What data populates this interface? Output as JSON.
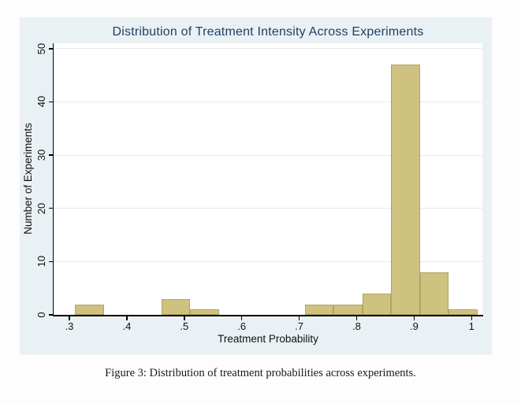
{
  "figure": {
    "caption": "Figure 3: Distribution of treatment probabilities across experiments."
  },
  "colors": {
    "chart_background": "#eaf1f4",
    "plot_background": "#ffffff",
    "title_color": "#1e3f66",
    "bar_fill": "#cfc180",
    "bar_border": "#b3a55c",
    "gridline": "#e3ebf0",
    "axis": "#000000"
  },
  "chart_data": {
    "type": "bar",
    "subtype": "histogram",
    "title": "Distribution of Treatment Intensity Across Experiments",
    "xlabel": "Treatment Probability",
    "ylabel": "Number of Experiments",
    "grid": "horizontal",
    "legend": "none",
    "bin_width": 0.05,
    "xlim": [
      0.2726,
      1.0188
    ],
    "ylim": [
      0,
      51
    ],
    "x_ticks": [
      {
        "label": ".3",
        "value": 0.3
      },
      {
        "label": ".4",
        "value": 0.4
      },
      {
        "label": ".5",
        "value": 0.5
      },
      {
        "label": ".6",
        "value": 0.6
      },
      {
        "label": ".7",
        "value": 0.7
      },
      {
        "label": ".8",
        "value": 0.8
      },
      {
        "label": ".9",
        "value": 0.9
      },
      {
        "label": "1",
        "value": 1.0
      }
    ],
    "y_ticks": [
      {
        "label": "0",
        "value": 0
      },
      {
        "label": "10",
        "value": 10
      },
      {
        "label": "20",
        "value": 20
      },
      {
        "label": "30",
        "value": 30
      },
      {
        "label": "40",
        "value": 40
      },
      {
        "label": "50",
        "value": 50
      }
    ],
    "bins": [
      {
        "x0": 0.31,
        "x1": 0.36,
        "count": 2
      },
      {
        "x0": 0.46,
        "x1": 0.51,
        "count": 3
      },
      {
        "x0": 0.51,
        "x1": 0.56,
        "count": 1
      },
      {
        "x0": 0.71,
        "x1": 0.76,
        "count": 2
      },
      {
        "x0": 0.76,
        "x1": 0.81,
        "count": 2
      },
      {
        "x0": 0.81,
        "x1": 0.86,
        "count": 4
      },
      {
        "x0": 0.86,
        "x1": 0.91,
        "count": 47
      },
      {
        "x0": 0.91,
        "x1": 0.96,
        "count": 8
      },
      {
        "x0": 0.96,
        "x1": 1.01,
        "count": 1
      }
    ],
    "total_experiments": 70
  }
}
